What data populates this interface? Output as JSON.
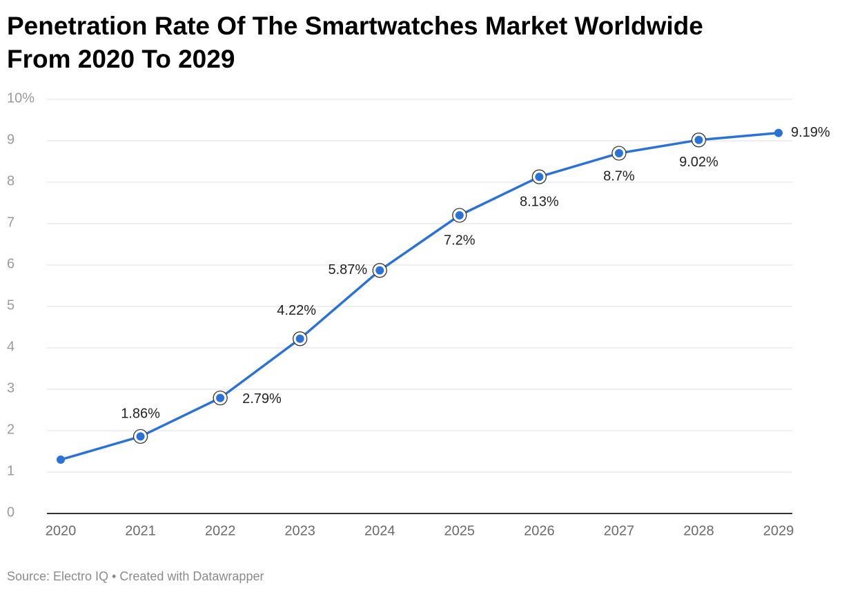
{
  "chart_data": {
    "type": "line",
    "title": "Penetration Rate Of The Smartwatches Market Worldwide From 2020 To 2029",
    "categories": [
      "2020",
      "2021",
      "2022",
      "2023",
      "2024",
      "2025",
      "2026",
      "2027",
      "2028",
      "2029"
    ],
    "series": [
      {
        "name": "Penetration rate",
        "color": "#2b72d6",
        "values": [
          1.3,
          1.86,
          2.79,
          4.22,
          5.87,
          7.2,
          8.13,
          8.7,
          9.02,
          9.19
        ],
        "value_labels": [
          null,
          "1.86%",
          "2.79%",
          "4.22%",
          "5.87%",
          "7.2%",
          "8.13%",
          "8.7%",
          "9.02%",
          "9.19%"
        ]
      }
    ],
    "ylim": [
      0,
      10
    ],
    "yticks": [
      0,
      1,
      2,
      3,
      4,
      5,
      6,
      7,
      8,
      9,
      {
        "value": 10,
        "label": "10%"
      }
    ],
    "grid": true,
    "source": "Source: Electro IQ • Created with Datawrapper"
  }
}
